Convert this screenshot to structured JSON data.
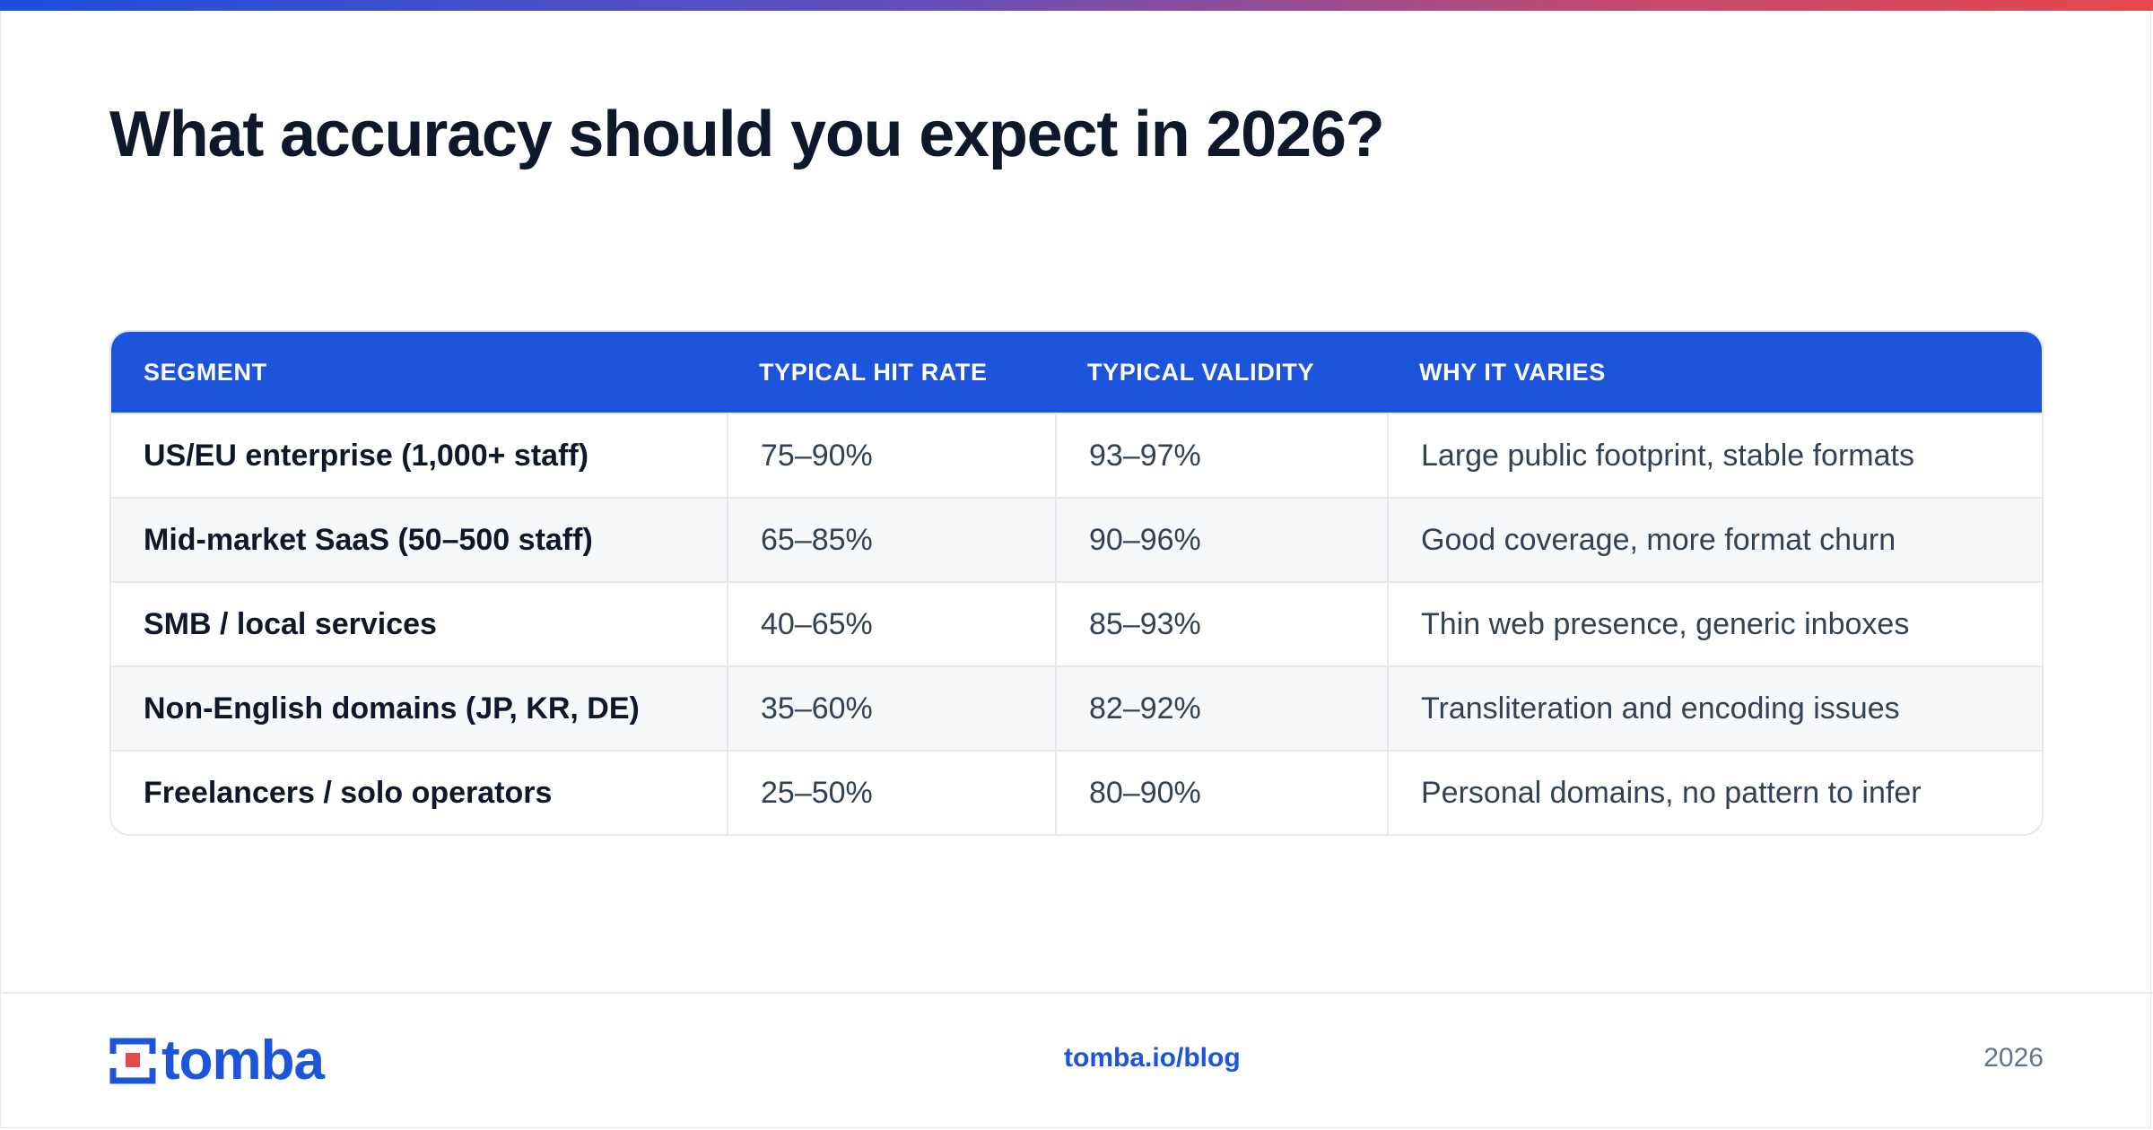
{
  "title": "What accuracy should you expect in 2026?",
  "table": {
    "headers": [
      "SEGMENT",
      "TYPICAL HIT RATE",
      "TYPICAL VALIDITY",
      "WHY IT VARIES"
    ],
    "rows": [
      {
        "segment": "US/EU enterprise (1,000+ staff)",
        "hit_rate": "75–90%",
        "validity": "93–97%",
        "why": "Large public footprint, stable formats"
      },
      {
        "segment": "Mid-market SaaS (50–500 staff)",
        "hit_rate": "65–85%",
        "validity": "90–96%",
        "why": "Good coverage, more format churn"
      },
      {
        "segment": "SMB / local services",
        "hit_rate": "40–65%",
        "validity": "85–93%",
        "why": "Thin web presence, generic inboxes"
      },
      {
        "segment": "Non-English domains (JP, KR, DE)",
        "hit_rate": "35–60%",
        "validity": "82–92%",
        "why": "Transliteration and encoding issues"
      },
      {
        "segment": "Freelancers / solo operators",
        "hit_rate": "25–50%",
        "validity": "80–90%",
        "why": "Personal domains, no pattern to infer"
      }
    ]
  },
  "footer": {
    "logo_text": "tomba",
    "link": "tomba.io/blog",
    "year": "2026"
  },
  "colors": {
    "accent": "#1c54dc",
    "title": "#0f172a",
    "body_text": "#334155",
    "muted": "#64748b",
    "logo_red": "#e5484d"
  }
}
